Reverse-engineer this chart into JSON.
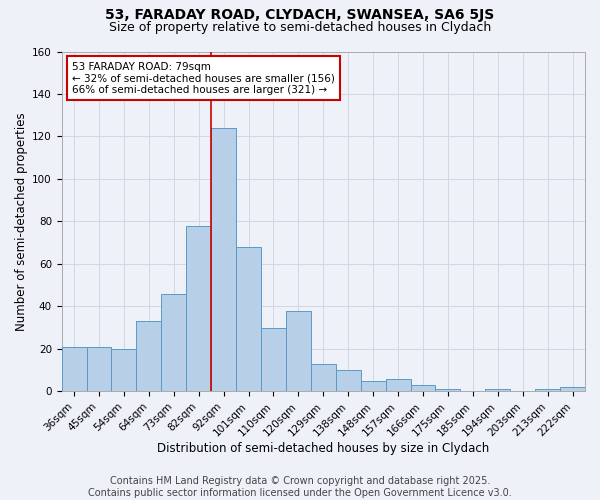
{
  "title_line1": "53, FARADAY ROAD, CLYDACH, SWANSEA, SA6 5JS",
  "title_line2": "Size of property relative to semi-detached houses in Clydach",
  "xlabel": "Distribution of semi-detached houses by size in Clydach",
  "ylabel": "Number of semi-detached properties",
  "bar_labels": [
    "36sqm",
    "45sqm",
    "54sqm",
    "64sqm",
    "73sqm",
    "82sqm",
    "92sqm",
    "101sqm",
    "110sqm",
    "120sqm",
    "129sqm",
    "138sqm",
    "148sqm",
    "157sqm",
    "166sqm",
    "175sqm",
    "185sqm",
    "194sqm",
    "203sqm",
    "213sqm",
    "222sqm"
  ],
  "bar_values": [
    21,
    21,
    20,
    33,
    46,
    78,
    124,
    68,
    30,
    38,
    13,
    10,
    5,
    6,
    3,
    1,
    0,
    1,
    0,
    1,
    2
  ],
  "bar_color": "#b8cfe8",
  "bar_edge_color": "#5a9ac8",
  "annotation_box_text": "53 FARADAY ROAD: 79sqm\n← 32% of semi-detached houses are smaller (156)\n66% of semi-detached houses are larger (321) →",
  "annotation_box_color": "#ffffff",
  "annotation_box_edge_color": "#cc0000",
  "annotation_text_color": "#000000",
  "vline_x_index": 5.5,
  "vline_color": "#cc0000",
  "ylim": [
    0,
    160
  ],
  "yticks": [
    0,
    20,
    40,
    60,
    80,
    100,
    120,
    140,
    160
  ],
  "grid_color": "#d0d8e8",
  "background_color": "#eef2f8",
  "footer_text": "Contains HM Land Registry data © Crown copyright and database right 2025.\nContains public sector information licensed under the Open Government Licence v3.0.",
  "footer_fontsize": 7.0,
  "title1_fontsize": 10,
  "title2_fontsize": 9,
  "annotation_fontsize": 7.5,
  "axis_label_fontsize": 8.5,
  "tick_fontsize": 7.5
}
